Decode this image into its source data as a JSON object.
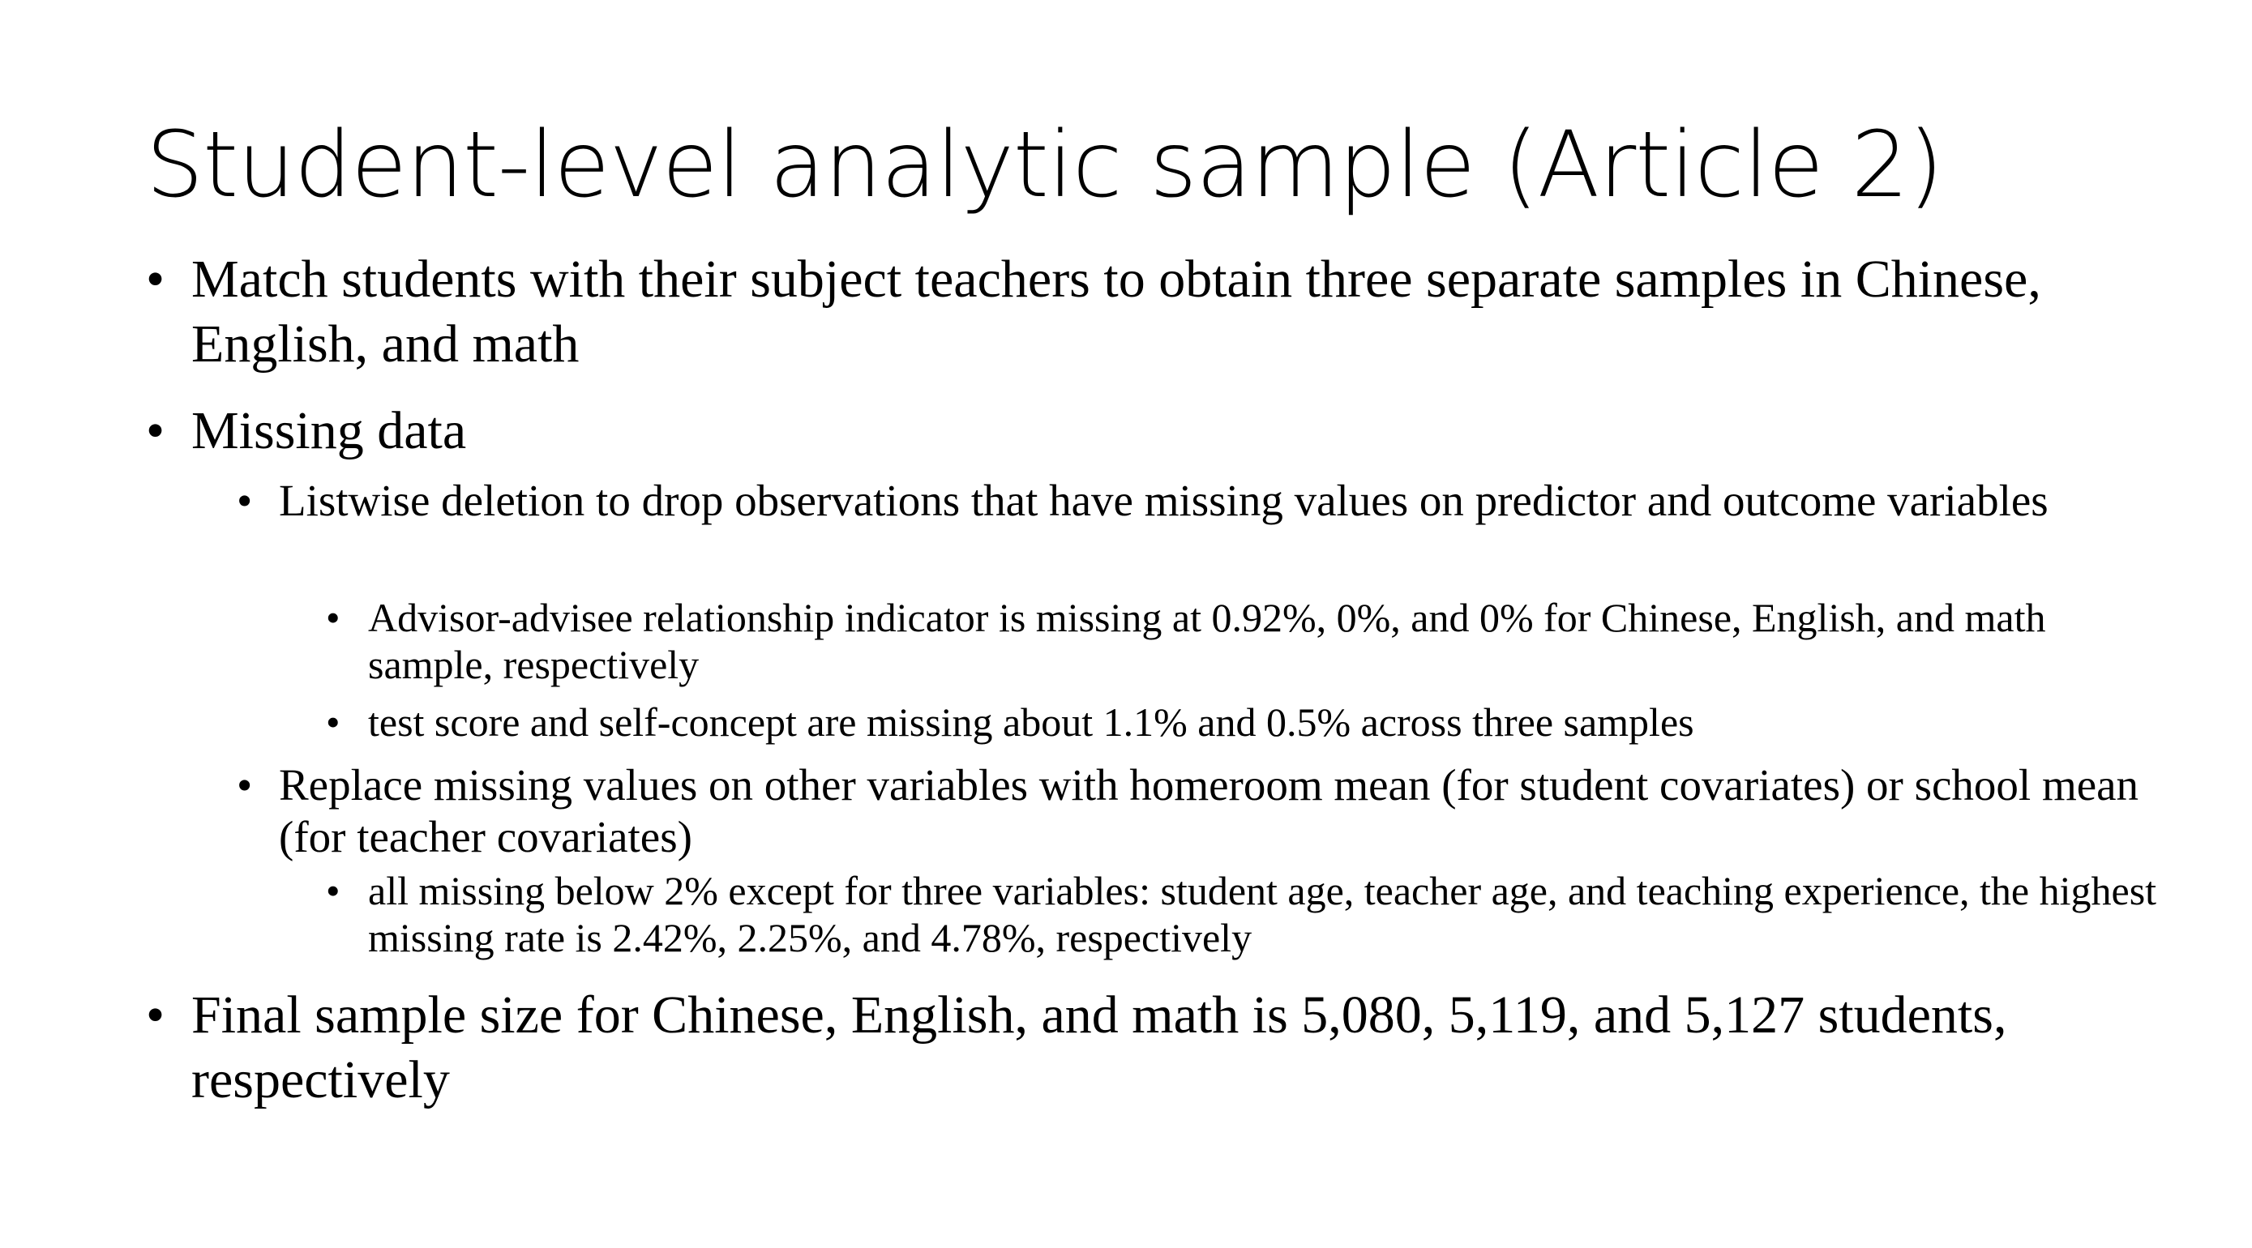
{
  "slide": {
    "title": "Student-level analytic sample (Article 2)",
    "bullet_char": "•",
    "items": [
      {
        "level": 1,
        "text": "Match students with their subject teachers to obtain three separate samples in Chinese, English, and math"
      },
      {
        "level": 1,
        "text": "Missing data"
      },
      {
        "level": 2,
        "text": "Listwise deletion to drop observations that have missing values on predictor and outcome variables"
      },
      {
        "level": 3,
        "text": "Advisor-advisee relationship indicator is missing at 0.92%, 0%, and 0% for Chinese, English, and math sample, respectively"
      },
      {
        "level": 3,
        "text": "test score and self-concept are missing about 1.1% and 0.5% across three samples"
      },
      {
        "level": 2,
        "text": "Replace missing values on other variables with homeroom mean (for student covariates) or school mean (for teacher covariates)"
      },
      {
        "level": 3,
        "text": "all missing below 2% except for three variables: student age, teacher age, and teaching experience, the highest missing rate is 2.42%, 2.25%, and 4.78%, respectively"
      },
      {
        "level": 1,
        "text": "Final sample size for Chinese, English, and math is 5,080, 5,119, and 5,127 students, respectively"
      }
    ]
  }
}
